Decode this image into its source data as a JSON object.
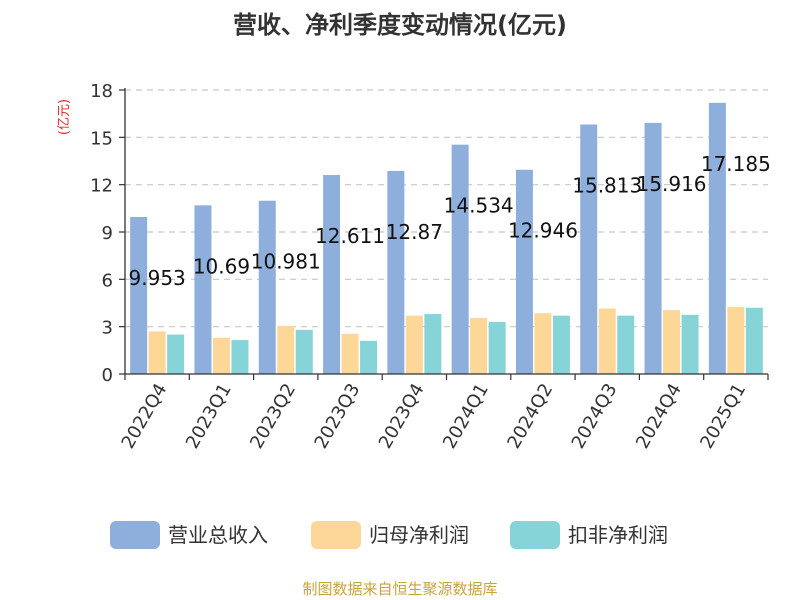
{
  "chart_data": {
    "type": "bar",
    "title": "营收、净利季度变动情况(亿元)",
    "ylabel": "(亿元)",
    "categories": [
      "2022Q4",
      "2023Q1",
      "2023Q2",
      "2023Q3",
      "2023Q4",
      "2024Q1",
      "2024Q2",
      "2024Q3",
      "2024Q4",
      "2025Q1"
    ],
    "series": [
      {
        "name": "营业总收入",
        "color": "#8eaedb",
        "values": [
          9.953,
          10.69,
          10.981,
          12.611,
          12.87,
          14.534,
          12.946,
          15.813,
          15.916,
          17.185
        ],
        "labels": [
          "9.953",
          "10.69",
          "10.981",
          "12.611",
          "12.87",
          "14.534",
          "12.946",
          "15.813",
          "15.916",
          "17.185"
        ]
      },
      {
        "name": "归母净利润",
        "color": "#fdd797",
        "values": [
          2.7,
          2.3,
          3.05,
          2.55,
          3.7,
          3.55,
          3.85,
          4.15,
          4.05,
          4.25
        ]
      },
      {
        "name": "扣非净利润",
        "color": "#86d4d8",
        "values": [
          2.5,
          2.15,
          2.8,
          2.1,
          3.8,
          3.3,
          3.7,
          3.7,
          3.75,
          4.2
        ]
      }
    ],
    "ylim": [
      0,
      18
    ],
    "yticks": [
      0,
      3,
      6,
      9,
      12,
      15,
      18
    ],
    "grid": true,
    "legend_position": "bottom"
  },
  "footer": {
    "source": "制图数据来自恒生聚源数据库"
  }
}
